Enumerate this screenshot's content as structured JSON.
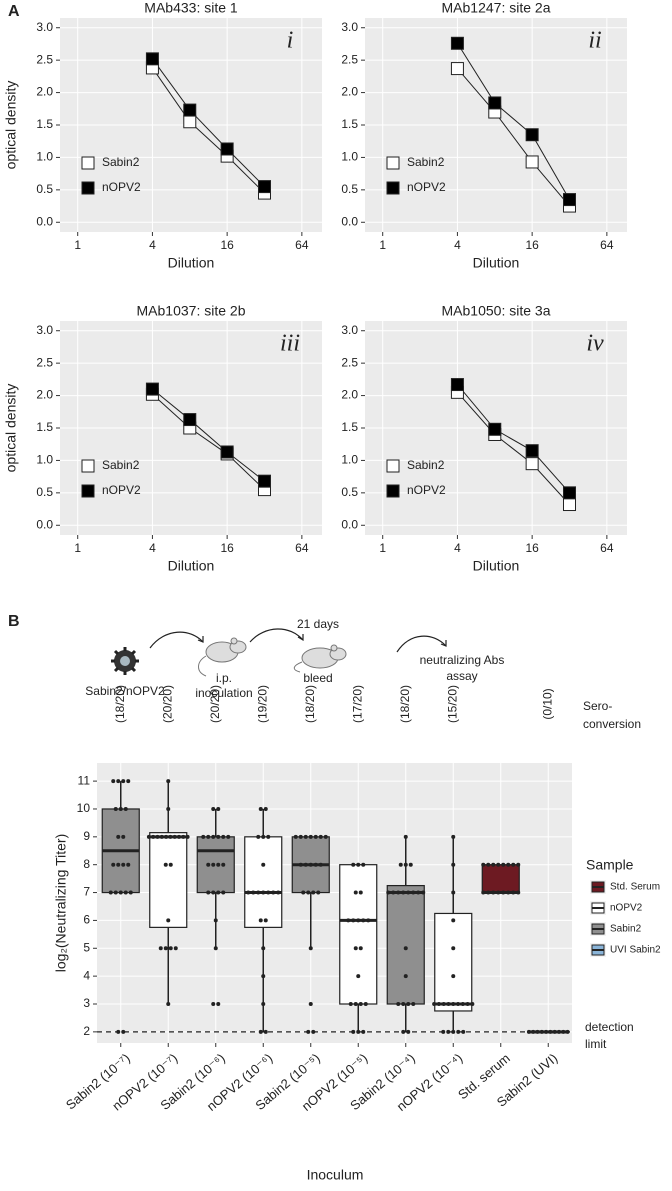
{
  "figure": {
    "panel_labels": [
      "A",
      "B"
    ],
    "schematic": {
      "virus_label": "Sabin2/nOPV2",
      "inoculation": [
        "i.p.",
        "inoculation"
      ],
      "interval": "21 days",
      "bleed": "bleed",
      "assay": [
        "neutralizing Abs",
        "assay"
      ]
    }
  },
  "chart_data": [
    {
      "type": "line",
      "title": "MAb433: site 1",
      "annotation": "i",
      "xlabel": "Dilution",
      "ylabel": "optical density",
      "x": [
        4,
        8,
        16,
        32
      ],
      "log_x": true,
      "grid": true,
      "legend": "left",
      "series": [
        {
          "name": "Sabin2",
          "color": "#ffffff",
          "values": [
            2.38,
            1.55,
            1.02,
            0.45
          ]
        },
        {
          "name": "nOPV2",
          "color": "#000000",
          "values": [
            2.52,
            1.73,
            1.13,
            0.55
          ]
        }
      ],
      "xlim": [
        0.72,
        93
      ],
      "xticks": [
        1,
        4,
        16,
        64
      ],
      "ylim": [
        -0.15,
        3.15
      ],
      "yticks": [
        {
          "value": 0,
          "label": "0.0"
        },
        0.5,
        {
          "value": 1,
          "label": "1.0"
        },
        1.5,
        {
          "value": 2,
          "label": "2.0"
        },
        2.5,
        {
          "value": 3,
          "label": "3.0"
        }
      ]
    },
    {
      "type": "line",
      "title": "MAb1247: site 2a",
      "annotation": "ii",
      "xlabel": "Dilution",
      "x": [
        4,
        8,
        16,
        32
      ],
      "log_x": true,
      "grid": true,
      "legend": "left",
      "series": [
        {
          "name": "Sabin2",
          "color": "#ffffff",
          "values": [
            2.37,
            1.7,
            0.93,
            0.25
          ]
        },
        {
          "name": "nOPV2",
          "color": "#000000",
          "values": [
            2.76,
            1.84,
            1.35,
            0.35
          ]
        }
      ],
      "xlim": [
        0.72,
        93
      ],
      "xticks": [
        1,
        4,
        16,
        64
      ],
      "ylim": [
        -0.15,
        3.15
      ],
      "yticks": [
        {
          "value": 0,
          "label": "0.0"
        },
        0.5,
        {
          "value": 1,
          "label": "1.0"
        },
        1.5,
        {
          "value": 2,
          "label": "2.0"
        },
        2.5,
        {
          "value": 3,
          "label": "3.0"
        }
      ]
    },
    {
      "type": "line",
      "title": "MAb1037: site 2b",
      "annotation": "iii",
      "xlabel": "Dilution",
      "ylabel": "optical density",
      "x": [
        4,
        8,
        16,
        32
      ],
      "log_x": true,
      "grid": true,
      "legend": "left",
      "series": [
        {
          "name": "Sabin2",
          "color": "#ffffff",
          "values": [
            2.02,
            1.5,
            1.1,
            0.55
          ]
        },
        {
          "name": "nOPV2",
          "color": "#000000",
          "values": [
            2.1,
            1.63,
            1.13,
            0.68
          ]
        }
      ],
      "xlim": [
        0.72,
        93
      ],
      "xticks": [
        1,
        4,
        16,
        64
      ],
      "ylim": [
        -0.15,
        3.15
      ],
      "yticks": [
        {
          "value": 0,
          "label": "0.0"
        },
        0.5,
        {
          "value": 1,
          "label": "1.0"
        },
        1.5,
        {
          "value": 2,
          "label": "2.0"
        },
        2.5,
        {
          "value": 3,
          "label": "3.0"
        }
      ]
    },
    {
      "type": "line",
      "title": "MAb1050: site 3a",
      "annotation": "iv",
      "xlabel": "Dilution",
      "x": [
        4,
        8,
        16,
        32
      ],
      "log_x": true,
      "grid": true,
      "legend": "left",
      "series": [
        {
          "name": "Sabin2",
          "color": "#ffffff",
          "values": [
            2.05,
            1.4,
            0.95,
            0.32
          ]
        },
        {
          "name": "nOPV2",
          "color": "#000000",
          "values": [
            2.17,
            1.48,
            1.15,
            0.5
          ]
        }
      ],
      "xlim": [
        0.72,
        93
      ],
      "xticks": [
        1,
        4,
        16,
        64
      ],
      "ylim": [
        -0.15,
        3.15
      ],
      "yticks": [
        {
          "value": 0,
          "label": "0.0"
        },
        0.5,
        {
          "value": 1,
          "label": "1.0"
        },
        1.5,
        {
          "value": 2,
          "label": "2.0"
        },
        2.5,
        {
          "value": 3,
          "label": "3.0"
        }
      ]
    },
    {
      "type": "box",
      "xlabel": "Inoculum",
      "ylabel": "log₂(Neutralizing Titer)",
      "grid": true,
      "categories": [
        "Sabin2 (10⁻⁷)",
        "nOPV2 (10⁻⁷)",
        "Sabin2 (10⁻⁶)",
        "nOPV2 (10⁻⁶)",
        "Sabin2 (10⁻⁵)",
        "nOPV2 (10⁻⁵)",
        "Sabin2 (10⁻⁴)",
        "nOPV2 (10⁻⁴)",
        "Std. serum",
        "Sabin2 (UVI)"
      ],
      "annotations": [
        "(18/20)",
        "(20/20)",
        "(20/20)",
        "(19/20)",
        "(18/20)",
        "(17/20)",
        "(18/20)",
        "(15/20)",
        null,
        "(0/10)"
      ],
      "annotation_title": [
        "Sero-",
        "conversion"
      ],
      "reference_line": {
        "value": 2,
        "label": [
          "detection",
          "limit"
        ]
      },
      "boxes": [
        {
          "color": "#8f8f8f",
          "min": 7,
          "q1": 7,
          "median": 8.5,
          "q3": 10,
          "max": 11,
          "points": [
            11,
            11,
            11,
            11,
            10,
            10,
            10,
            9,
            9,
            8,
            8,
            8,
            8,
            7,
            7,
            7,
            7,
            7,
            2,
            2
          ]
        },
        {
          "color": "#ffffff",
          "min": 3,
          "q1": 5.75,
          "median": 9,
          "q3": 9.15,
          "max": 11,
          "points": [
            11,
            10,
            9,
            9,
            9,
            9,
            9,
            9,
            9,
            9,
            9,
            9,
            8,
            8,
            6,
            5,
            5,
            5,
            5,
            3
          ]
        },
        {
          "color": "#8f8f8f",
          "min": 5,
          "q1": 7,
          "median": 8.5,
          "q3": 9,
          "max": 10,
          "points": [
            10,
            10,
            9,
            9,
            9,
            9,
            9,
            9,
            8,
            8,
            8,
            8,
            7,
            7,
            7,
            7,
            6,
            5,
            3,
            3
          ]
        },
        {
          "color": "#ffffff",
          "min": 2,
          "q1": 5.75,
          "median": 7,
          "q3": 9,
          "max": 10,
          "points": [
            10,
            10,
            9,
            9,
            9,
            8,
            7,
            7,
            7,
            7,
            7,
            7,
            7,
            6,
            6,
            5,
            4,
            3,
            2,
            2
          ]
        },
        {
          "color": "#8f8f8f",
          "min": 5,
          "q1": 7,
          "median": 8,
          "q3": 9,
          "max": 9,
          "points": [
            9,
            9,
            9,
            9,
            9,
            9,
            9,
            8,
            8,
            8,
            8,
            8,
            7,
            7,
            7,
            7,
            5,
            3,
            2,
            2
          ]
        },
        {
          "color": "#ffffff",
          "min": 2,
          "q1": 3,
          "median": 6,
          "q3": 8,
          "max": 8,
          "points": [
            8,
            8,
            8,
            7,
            7,
            6,
            6,
            6,
            6,
            6,
            5,
            5,
            4,
            3,
            3,
            3,
            3,
            2,
            2,
            2
          ]
        },
        {
          "color": "#8f8f8f",
          "min": 2,
          "q1": 3,
          "median": 7,
          "q3": 7.25,
          "max": 9,
          "points": [
            9,
            8,
            8,
            8,
            7,
            7,
            7,
            7,
            7,
            7,
            7,
            7,
            5,
            4,
            3,
            3,
            3,
            3,
            2,
            2
          ]
        },
        {
          "color": "#ffffff",
          "min": 2,
          "q1": 2.75,
          "median": 3,
          "q3": 6.25,
          "max": 9,
          "points": [
            9,
            8,
            7,
            6,
            5,
            4,
            3,
            3,
            3,
            3,
            3,
            3,
            3,
            3,
            3,
            2,
            2,
            2,
            2,
            2
          ]
        },
        {
          "color": "#6d1a22",
          "min": 7,
          "q1": 7,
          "median": 7,
          "q3": 8,
          "max": 8,
          "points": [
            8,
            8,
            8,
            8,
            8,
            8,
            8,
            8,
            7,
            7,
            7,
            7,
            7,
            7,
            7,
            7
          ]
        },
        {
          "color": "#8ab4d8",
          "min": 2,
          "q1": 2,
          "median": 2,
          "q3": 2,
          "max": 2,
          "points": [
            2,
            2,
            2,
            2,
            2,
            2,
            2,
            2,
            2,
            2
          ]
        }
      ],
      "legend": {
        "title": "Sample",
        "items": [
          {
            "name": "Std. Serum",
            "color": "#6d1a22"
          },
          {
            "name": "nOPV2",
            "color": "#ffffff"
          },
          {
            "name": "Sabin2",
            "color": "#8f8f8f"
          },
          {
            "name": "UVI Sabin2",
            "color": "#8ab4d8"
          }
        ]
      },
      "ylim": [
        1.6,
        11.65
      ],
      "yticks": [
        2,
        3,
        4,
        5,
        6,
        7,
        8,
        9,
        10,
        11
      ]
    }
  ]
}
